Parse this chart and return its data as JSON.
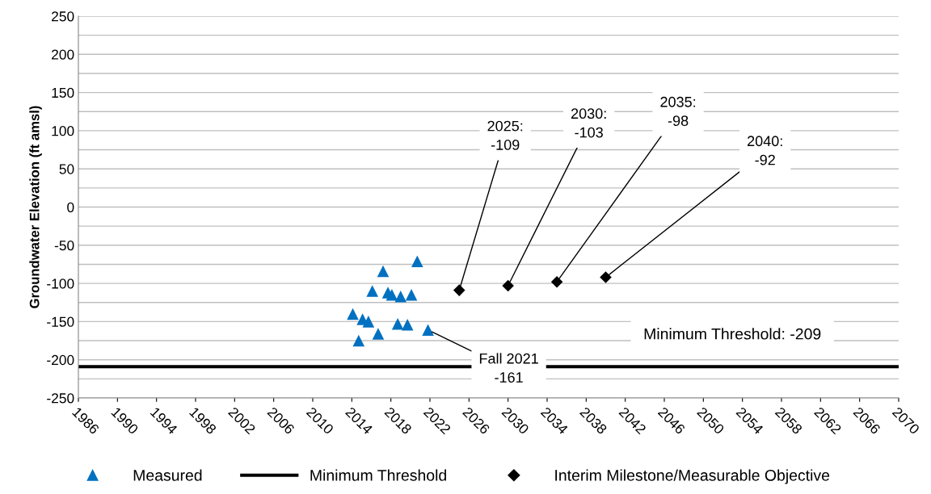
{
  "chart_data": {
    "type": "scatter",
    "ylabel": "Groundwater Elevation (ft amsl)",
    "xlim": [
      1986,
      2070
    ],
    "xticks": [
      1986,
      1990,
      1994,
      1998,
      2002,
      2006,
      2010,
      2014,
      2018,
      2022,
      2026,
      2030,
      2034,
      2038,
      2042,
      2046,
      2050,
      2054,
      2058,
      2062,
      2066,
      2070
    ],
    "ylim": [
      -250,
      250
    ],
    "yticks": [
      -250,
      {
        "value": -225,
        "label": null
      },
      -200,
      {
        "value": -175,
        "label": null
      },
      -150,
      {
        "value": -125,
        "label": null
      },
      -100,
      {
        "value": -75,
        "label": null
      },
      -50,
      {
        "value": -25,
        "label": null
      },
      0,
      {
        "value": 25,
        "label": null
      },
      50,
      {
        "value": 75,
        "label": null
      },
      100,
      {
        "value": 125,
        "label": null
      },
      150,
      {
        "value": 175,
        "label": null
      },
      200,
      {
        "value": 225,
        "label": null
      },
      250
    ],
    "grid": "y",
    "legend": "bottom",
    "series": [
      {
        "name": "Measured",
        "marker": "triangle",
        "color": "#0070c0",
        "x": [
          2020.7,
          2017.2,
          2016.1,
          2017.7,
          2018.1,
          2019.0,
          2020.1,
          2014.1,
          2015.1,
          2015.7,
          2018.7,
          2019.7,
          2016.7,
          2021.8,
          2014.7
        ],
        "values": [
          -71,
          -84,
          -110,
          -112,
          -115,
          -117,
          -115,
          -140,
          -147,
          -150,
          -153,
          -154,
          -166,
          -161,
          -175
        ]
      },
      {
        "name": "Minimum Threshold",
        "type": "line",
        "marker": "none",
        "line_style": "solid",
        "color": "#000000",
        "x": [
          1986,
          2070
        ],
        "values": [
          -209,
          -209
        ]
      },
      {
        "name": "Interim Milestone/Measurable Objective",
        "marker": "diamond",
        "color": "#000000",
        "x": [
          2025,
          2030,
          2035,
          2040
        ],
        "values": [
          -109,
          -103,
          -98,
          -92
        ]
      }
    ],
    "annotations": [
      {
        "text": "2025:\n-109",
        "x": 2025,
        "y": -109
      },
      {
        "text": "2030:\n-103",
        "x": 2030,
        "y": -103
      },
      {
        "text": "2035:\n-98",
        "x": 2035,
        "y": -98
      },
      {
        "text": "2040:\n-92",
        "x": 2040,
        "y": -92
      },
      {
        "text": "Fall 2021\n-161",
        "x": 2021.8,
        "y": -161
      },
      {
        "text": "Minimum Threshold: -209",
        "x": 2054,
        "y": -209
      }
    ]
  }
}
